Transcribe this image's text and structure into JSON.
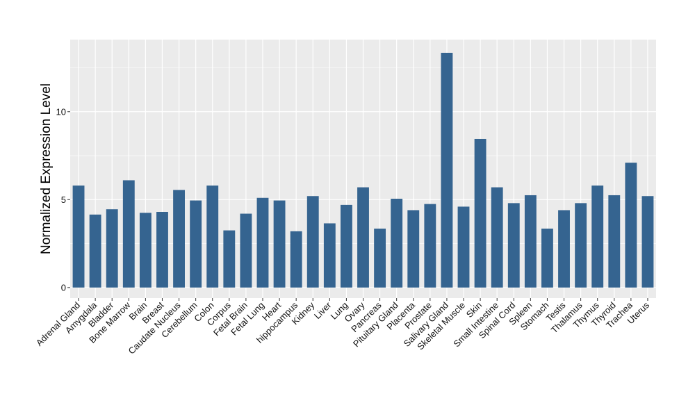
{
  "chart_data": {
    "type": "bar",
    "title": "",
    "xlabel": "",
    "ylabel": "Normalized Expression Level",
    "ylim": [
      -0.6,
      14.1
    ],
    "yticks": [
      0,
      5,
      10
    ],
    "grid": true,
    "bar_color": "#356490",
    "panel_color": "#ebebeb",
    "grid_color": "#ffffff",
    "categories": [
      "Adrenal Gland",
      "Amygdala",
      "Bladder",
      "Bone Marrow",
      "Brain",
      "Breast",
      "Caudate Nucleus",
      "Cerebellum",
      "Colon",
      "Corpus",
      "Fetal Brain",
      "Fetal Lung",
      "Heart",
      "hippocampus",
      "Kidney",
      "Liver",
      "Lung",
      "Ovary",
      "Pancreas",
      "Pituitary Gland",
      "Placenta",
      "Prostate",
      "Salivary Gland",
      "Skeletal Muscle",
      "Skin",
      "Small Intestine",
      "Spinal Cord",
      "Spleen",
      "Stomach",
      "Testis",
      "Thalamus",
      "Thymus",
      "Thyroid",
      "Trachea",
      "Uterus"
    ],
    "values": [
      5.8,
      4.15,
      4.45,
      6.1,
      4.25,
      4.3,
      5.55,
      4.95,
      5.8,
      3.25,
      4.2,
      5.1,
      4.95,
      3.2,
      5.2,
      3.65,
      4.7,
      5.7,
      3.35,
      5.05,
      4.4,
      4.75,
      13.35,
      4.6,
      8.45,
      5.7,
      4.8,
      5.25,
      3.35,
      4.4,
      4.8,
      5.8,
      5.25,
      7.1,
      5.2
    ]
  }
}
